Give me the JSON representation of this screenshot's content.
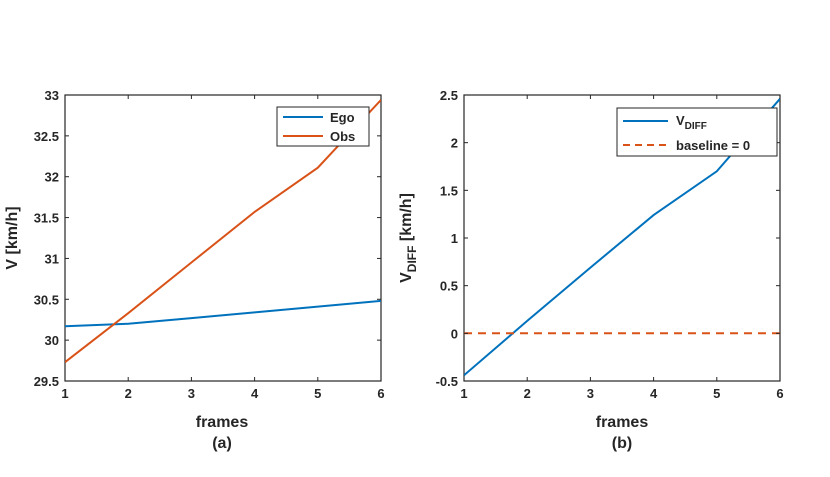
{
  "chart_data": [
    {
      "type": "line",
      "caption": "(a)",
      "xlabel": "frames",
      "ylabel": "V [km/h]",
      "xlim": [
        1,
        6
      ],
      "ylim": [
        29.5,
        33
      ],
      "xticks": [
        1,
        2,
        3,
        4,
        5,
        6
      ],
      "yticks": [
        29.5,
        30,
        30.5,
        31,
        31.5,
        32,
        32.5,
        33
      ],
      "xtick_labels": [
        "1",
        "2",
        "3",
        "4",
        "5",
        "6"
      ],
      "ytick_labels": [
        "29.5",
        "30",
        "30.5",
        "31",
        "31.5",
        "32",
        "32.5",
        "33"
      ],
      "legend_position": "top-right",
      "series": [
        {
          "name": "Ego",
          "color": "#0072BD",
          "style": "solid",
          "x": [
            1,
            2,
            3,
            4,
            5,
            6
          ],
          "y": [
            30.17,
            30.2,
            30.27,
            30.34,
            30.41,
            30.48
          ]
        },
        {
          "name": "Obs",
          "color": "#D95319",
          "style": "solid",
          "x": [
            1,
            2,
            3,
            4,
            5,
            6
          ],
          "y": [
            29.73,
            30.33,
            30.95,
            31.57,
            32.11,
            32.94
          ]
        }
      ]
    },
    {
      "type": "line",
      "caption": "(b)",
      "xlabel": "frames",
      "ylabel_main": "V",
      "ylabel_sub": "DIFF",
      "ylabel_unit": " [km/h]",
      "xlim": [
        1,
        6
      ],
      "ylim": [
        -0.5,
        2.5
      ],
      "xticks": [
        1,
        2,
        3,
        4,
        5,
        6
      ],
      "yticks": [
        -0.5,
        0,
        0.5,
        1,
        1.5,
        2,
        2.5
      ],
      "xtick_labels": [
        "1",
        "2",
        "3",
        "4",
        "5",
        "6"
      ],
      "ytick_labels": [
        "-0.5",
        "0",
        "0.5",
        "1",
        "1.5",
        "2",
        "2.5"
      ],
      "legend_position": "top-right",
      "series": [
        {
          "name_main": "V",
          "name_sub": "DIFF",
          "color": "#0072BD",
          "style": "solid",
          "x": [
            1,
            2,
            3,
            4,
            5,
            6
          ],
          "y": [
            -0.44,
            0.13,
            0.69,
            1.24,
            1.7,
            2.46
          ]
        },
        {
          "name": "baseline = 0",
          "color": "#D95319",
          "style": "dashed",
          "x": [
            1,
            6
          ],
          "y": [
            0,
            0
          ]
        }
      ]
    }
  ]
}
